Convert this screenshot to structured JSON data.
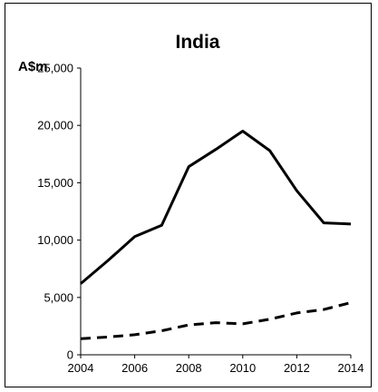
{
  "chart_data": {
    "type": "line",
    "title": "India",
    "ylabel": "A$m",
    "xlabel": "",
    "x": [
      2004,
      2005,
      2006,
      2007,
      2008,
      2009,
      2010,
      2011,
      2012,
      2013,
      2014
    ],
    "xticks": [
      "2004",
      "2006",
      "2008",
      "2010",
      "2012",
      "2014"
    ],
    "yticks": [
      "0",
      "5,000",
      "10,000",
      "15,000",
      "20,000",
      "25,000"
    ],
    "ylim": [
      0,
      25000
    ],
    "xlim": [
      2004,
      2014
    ],
    "grid": false,
    "legend": "none",
    "series": [
      {
        "style": "solid",
        "color": "#000000",
        "values": [
          6200,
          8200,
          10300,
          11300,
          16400,
          17900,
          19500,
          17800,
          14300,
          11500,
          11400
        ]
      },
      {
        "style": "dashed",
        "color": "#000000",
        "values": [
          1400,
          1550,
          1750,
          2100,
          2600,
          2800,
          2700,
          3100,
          3650,
          3950,
          4550
        ]
      }
    ]
  }
}
